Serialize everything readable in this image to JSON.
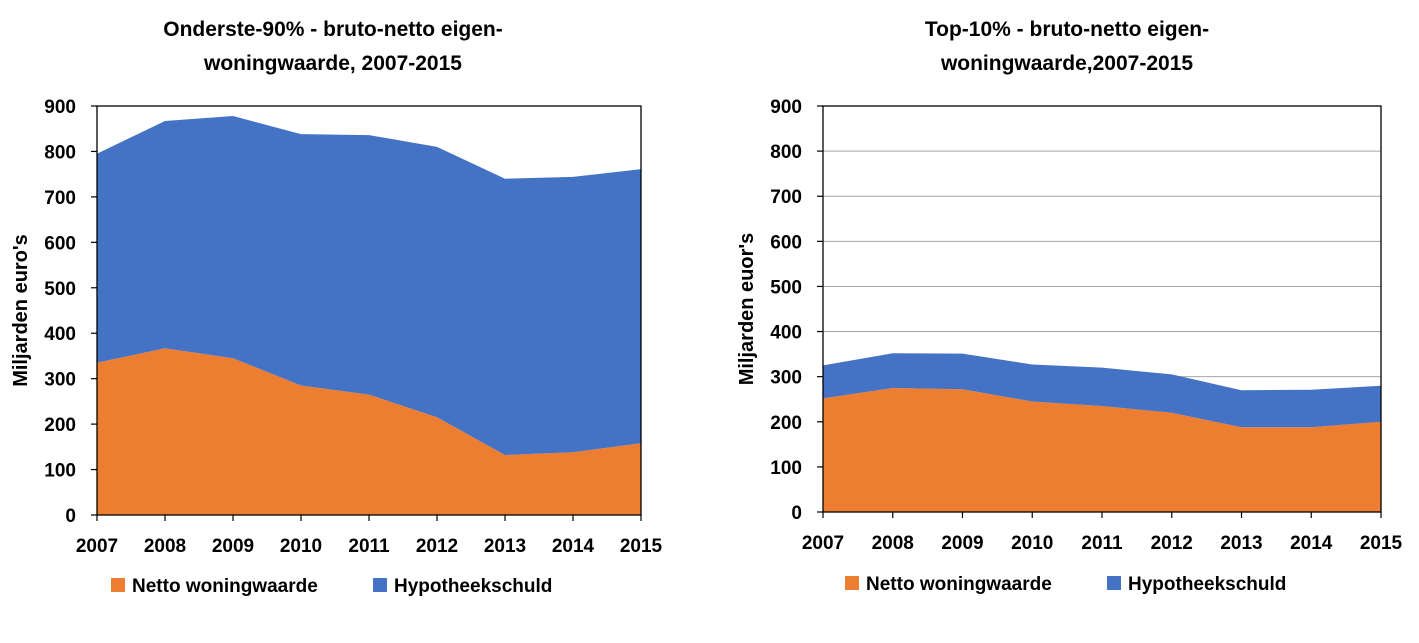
{
  "chart_data": [
    {
      "type": "area",
      "stacked": true,
      "title_lines": [
        "Onderste-90% - bruto-netto eigen-",
        "woningwaarde, 2007-2015"
      ],
      "xlabel": "",
      "ylabel": "Miljarden euro's",
      "x": [
        "2007",
        "2008",
        "2009",
        "2010",
        "2011",
        "2012",
        "2013",
        "2014",
        "2015"
      ],
      "ylim": [
        0,
        900
      ],
      "yticks": [
        0,
        100,
        200,
        300,
        400,
        500,
        600,
        700,
        800,
        900
      ],
      "grid": false,
      "legend_position": "bottom",
      "series": [
        {
          "name": "Netto woningwaarde",
          "color": "#ED7D31",
          "values": [
            335,
            367,
            345,
            285,
            265,
            215,
            132,
            138,
            158
          ]
        },
        {
          "name": "Hypotheekschuld",
          "color": "#4472C4",
          "values": [
            460,
            500,
            533,
            553,
            571,
            595,
            608,
            606,
            603
          ]
        }
      ]
    },
    {
      "type": "area",
      "stacked": true,
      "title_lines": [
        "Top-10% - bruto-netto eigen-",
        "woningwaarde,2007-2015"
      ],
      "xlabel": "",
      "ylabel": "Miljarden euor's",
      "x": [
        "2007",
        "2008",
        "2009",
        "2010",
        "2011",
        "2012",
        "2013",
        "2014",
        "2015"
      ],
      "ylim": [
        0,
        900
      ],
      "yticks": [
        0,
        100,
        200,
        300,
        400,
        500,
        600,
        700,
        800,
        900
      ],
      "grid": true,
      "legend_position": "bottom",
      "series": [
        {
          "name": "Netto woningwaarde",
          "color": "#ED7D31",
          "values": [
            252,
            275,
            272,
            245,
            235,
            220,
            188,
            188,
            200
          ]
        },
        {
          "name": "Hypotheekschuld",
          "color": "#4472C4",
          "values": [
            73,
            77,
            79,
            82,
            85,
            85,
            82,
            83,
            80
          ]
        }
      ]
    }
  ]
}
